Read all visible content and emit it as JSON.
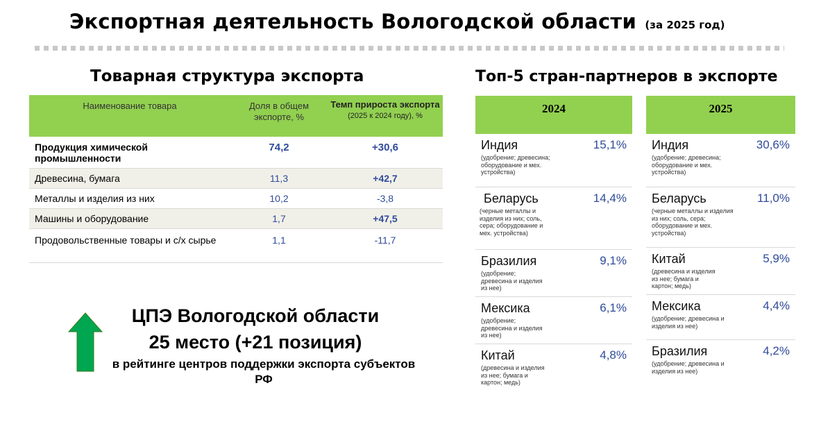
{
  "header": {
    "title": "Экспортная деятельность Вологодской области",
    "subtitle": "(за 2025 год)"
  },
  "goods": {
    "title": "Товарная структура экспорта",
    "columns": {
      "name": "Наименование товара",
      "share": "Доля в общем экспорте, %",
      "growth": "Темп прироста экспорта",
      "growth_note": "(2025 к 2024 году), %"
    },
    "rows": [
      {
        "name": "Продукция химической промышленности",
        "share": "74,2",
        "growth": "+30,6"
      },
      {
        "name": "Древесина, бумага",
        "share": "11,3",
        "growth": "+42,7"
      },
      {
        "name": "Металлы и изделия из них",
        "share": "10,2",
        "growth": "-3,8"
      },
      {
        "name": "Машины и оборудование",
        "share": "1,7",
        "growth": "+47,5"
      },
      {
        "name": "Продовольственные товары и с/х сырье",
        "share": "1,1",
        "growth": "-11,7"
      }
    ]
  },
  "rating": {
    "line1": "ЦПЭ Вологодской области",
    "line2": "25 место (+21 позиция)",
    "line3": "в рейтинге центров поддержки экспорта субъектов РФ",
    "arrow_color": "#00a650"
  },
  "partners": {
    "title": "Топ-5 стран-партнеров  в экспорте",
    "y2024": {
      "year": "2024",
      "items": [
        {
          "name": "Индия",
          "pct": "15,1%",
          "desc": "(удобрение; древесина; оборудование и мех. устройства)"
        },
        {
          "name": "Беларусь",
          "pct": "14,4%",
          "desc": "(черные металлы и изделия из них; соль, сера; оборудование и мех. устройства)"
        },
        {
          "name": "Бразилия",
          "pct": "9,1%",
          "desc": "(удобрение; древесина и изделия из нее)"
        },
        {
          "name": "Мексика",
          "pct": "6,1%",
          "desc": "(удобрение; древесина и изделия из нее)"
        },
        {
          "name": "Китай",
          "pct": "4,8%",
          "desc": "(древесина и изделия из нее; бумага и картон; медь)"
        }
      ]
    },
    "y2025": {
      "year": "2025",
      "items": [
        {
          "name": "Индия",
          "pct": "30,6%",
          "desc": "(удобрение; древесина; оборудование и мех. устройства)"
        },
        {
          "name": "Беларусь",
          "pct": "11,0%",
          "desc": "(черные металлы и изделия из них; соль, сера; оборудование и мех. устройства)"
        },
        {
          "name": "Китай",
          "pct": "5,9%",
          "desc": "(древесина и изделия из нее; бумага и картон; медь)"
        },
        {
          "name": "Мексика",
          "pct": "4,4%",
          "desc": "(удобрение; древесина и изделия из нее)"
        },
        {
          "name": "Бразилия",
          "pct": "4,2%",
          "desc": "(удобрение; древесина и изделия из нее)"
        }
      ]
    }
  },
  "colors": {
    "accent_green": "#92d050",
    "value_blue": "#2f4b9a"
  }
}
